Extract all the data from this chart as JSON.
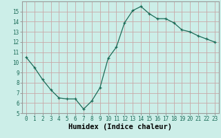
{
  "x": [
    0,
    1,
    2,
    3,
    4,
    5,
    6,
    7,
    8,
    9,
    10,
    11,
    12,
    13,
    14,
    15,
    16,
    17,
    18,
    19,
    20,
    21,
    22,
    23
  ],
  "y": [
    10.5,
    9.5,
    8.3,
    7.3,
    6.5,
    6.4,
    6.4,
    5.4,
    6.2,
    7.5,
    10.4,
    11.5,
    13.9,
    15.1,
    15.5,
    14.8,
    14.3,
    14.3,
    13.9,
    13.2,
    13.0,
    12.6,
    12.3,
    12.0
  ],
  "xlim": [
    -0.5,
    23.5
  ],
  "ylim": [
    5,
    16
  ],
  "yticks": [
    5,
    6,
    7,
    8,
    9,
    10,
    11,
    12,
    13,
    14,
    15
  ],
  "xticks": [
    0,
    1,
    2,
    3,
    4,
    5,
    6,
    7,
    8,
    9,
    10,
    11,
    12,
    13,
    14,
    15,
    16,
    17,
    18,
    19,
    20,
    21,
    22,
    23
  ],
  "xlabel": "Humidex (Indice chaleur)",
  "line_color": "#1a6b57",
  "marker": "+",
  "bg_color": "#cceee8",
  "grid_color": "#c8a8a8",
  "spine_color": "#999999",
  "tick_label_fontsize": 5.5,
  "xlabel_fontsize": 7.5,
  "title": ""
}
